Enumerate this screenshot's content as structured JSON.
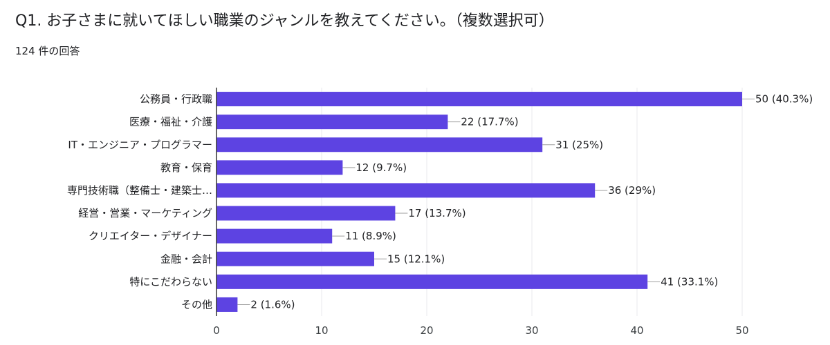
{
  "question": {
    "title": "Q1. お子さまに就いてほしい職業のジャンルを教えてください。（複数選択可）",
    "response_count": "124 件の回答"
  },
  "colors": {
    "bar": "#5d43e2",
    "grid": "#e8eaed",
    "axis": "#333333",
    "leader": "#9e9e9e"
  },
  "chart_data": {
    "type": "bar",
    "orientation": "horizontal",
    "categories": [
      "公務員・行政職",
      "医療・福祉・介護",
      "IT・エンジニア・プログラマー",
      "教育・保育",
      "専門技術職（整備士・建築士…",
      "経営・営業・マーケティング",
      "クリエイター・デザイナー",
      "金融・会計",
      "特にこだわらない",
      "その他"
    ],
    "values": [
      50,
      22,
      31,
      12,
      36,
      17,
      11,
      15,
      41,
      2
    ],
    "data_labels": [
      "50 (40.3%)",
      "22 (17.7%)",
      "31 (25%)",
      "12 (9.7%)",
      "36 (29%)",
      "17 (13.7%)",
      "11 (8.9%)",
      "15 (12.1%)",
      "41 (33.1%)",
      "2 (1.6%)"
    ],
    "xlim": [
      0,
      50
    ],
    "xticks": [
      0,
      10,
      20,
      30,
      40,
      50
    ],
    "grid": true,
    "legend": "none"
  }
}
